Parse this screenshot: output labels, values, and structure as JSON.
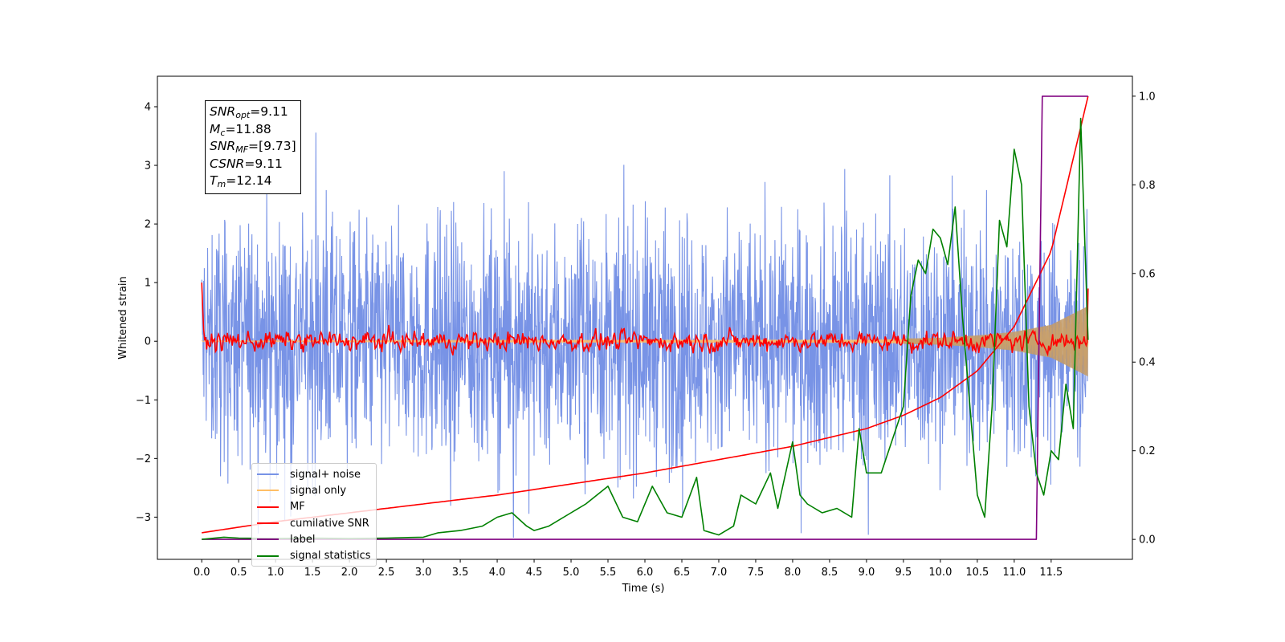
{
  "chart_data": {
    "type": "line",
    "xlabel": "Time (s)",
    "ylabel": "Whitened strain",
    "x_ticks": [
      "0.0",
      "0.5",
      "1.0",
      "1.5",
      "2.0",
      "2.5",
      "3.0",
      "3.5",
      "4.0",
      "4.5",
      "5.0",
      "5.5",
      "6.0",
      "6.5",
      "7.0",
      "7.5",
      "8.0",
      "8.5",
      "9.0",
      "9.5",
      "10.0",
      "10.5",
      "11.0",
      "11.5"
    ],
    "y_ticks_left": [
      "−3",
      "−2",
      "−1",
      "0",
      "1",
      "2",
      "3",
      "4"
    ],
    "y_ticks_right": [
      "0.0",
      "0.2",
      "0.4",
      "0.6",
      "0.8",
      "1.0"
    ],
    "xlim": [
      -0.6,
      12.6
    ],
    "ylim_left": [
      -3.72,
      4.52
    ],
    "ylim_right": [
      -0.045,
      1.045
    ],
    "annotation": [
      {
        "name": "SNR",
        "sub": "opt",
        "value": "=9.11"
      },
      {
        "name": "M",
        "sub": "c",
        "value": "=11.88"
      },
      {
        "name": "SNR",
        "sub": "MF",
        "value": "=[9.73]"
      },
      {
        "name": "CSNR",
        "sub": "",
        "value": "=9.11"
      },
      {
        "name": "T",
        "sub": "m",
        "value": "=12.14"
      }
    ],
    "legend": [
      {
        "label": "signal+ noise",
        "color": "#7893e6"
      },
      {
        "label": "signal only",
        "color": "#ffbf66"
      },
      {
        "label": "MF",
        "color": "#ff0000"
      },
      {
        "label": "cumilative SNR",
        "color": "#ff0000"
      },
      {
        "label": "label",
        "color": "#800080"
      },
      {
        "label": "signal statistics",
        "color": "#008000"
      }
    ],
    "series": [
      {
        "name": "signal+ noise",
        "axis": "left",
        "description": "whitened noise, approx. range -3.4 to 4.2 over 0-12 s"
      },
      {
        "name": "signal only",
        "axis": "left",
        "envelope": {
          "x": [
            0,
            9,
            10,
            10.5,
            11,
            11.5,
            12
          ],
          "amp": [
            0.01,
            0.03,
            0.06,
            0.1,
            0.16,
            0.28,
            0.6
          ]
        }
      },
      {
        "name": "MF",
        "axis": "left",
        "x_start": 0,
        "y_start": 1.0,
        "description": "oscillates about 0 with amplitude ~0.2, ends near 0.9"
      },
      {
        "name": "cumilative SNR",
        "axis": "right",
        "x": [
          0,
          1,
          2,
          3,
          4,
          5,
          6,
          7,
          8,
          9,
          9.5,
          10,
          10.5,
          11,
          11.5,
          12
        ],
        "y": [
          0.015,
          0.04,
          0.06,
          0.08,
          0.1,
          0.125,
          0.15,
          0.18,
          0.21,
          0.25,
          0.28,
          0.32,
          0.38,
          0.48,
          0.65,
          1.0
        ]
      },
      {
        "name": "label",
        "axis": "right",
        "x": [
          0,
          11.3,
          11.38,
          12.0
        ],
        "y": [
          0,
          0,
          1,
          1
        ]
      },
      {
        "name": "signal statistics",
        "axis": "right",
        "x": [
          0,
          0.3,
          0.5,
          1.0,
          1.5,
          2.0,
          2.5,
          3.0,
          3.2,
          3.5,
          3.8,
          4.0,
          4.2,
          4.4,
          4.5,
          4.7,
          5.0,
          5.2,
          5.5,
          5.7,
          5.9,
          6.1,
          6.3,
          6.5,
          6.7,
          6.8,
          7.0,
          7.2,
          7.3,
          7.5,
          7.7,
          7.8,
          8.0,
          8.1,
          8.2,
          8.4,
          8.6,
          8.8,
          8.9,
          9.0,
          9.2,
          9.5,
          9.6,
          9.7,
          9.8,
          9.9,
          10.0,
          10.1,
          10.2,
          10.3,
          10.4,
          10.5,
          10.6,
          10.7,
          10.8,
          10.9,
          11.0,
          11.1,
          11.2,
          11.3,
          11.4,
          11.5,
          11.6,
          11.7,
          11.8,
          11.9,
          12.0
        ],
        "y": [
          0.0,
          0.005,
          0.003,
          0.002,
          0.003,
          0.002,
          0.003,
          0.005,
          0.015,
          0.02,
          0.03,
          0.05,
          0.06,
          0.03,
          0.02,
          0.03,
          0.06,
          0.08,
          0.12,
          0.05,
          0.04,
          0.12,
          0.06,
          0.05,
          0.14,
          0.02,
          0.01,
          0.03,
          0.1,
          0.08,
          0.15,
          0.07,
          0.22,
          0.1,
          0.08,
          0.06,
          0.07,
          0.05,
          0.25,
          0.15,
          0.15,
          0.3,
          0.55,
          0.63,
          0.6,
          0.7,
          0.68,
          0.62,
          0.75,
          0.5,
          0.3,
          0.1,
          0.05,
          0.3,
          0.72,
          0.66,
          0.88,
          0.8,
          0.3,
          0.15,
          0.1,
          0.2,
          0.18,
          0.35,
          0.25,
          0.95,
          0.45
        ]
      }
    ]
  }
}
